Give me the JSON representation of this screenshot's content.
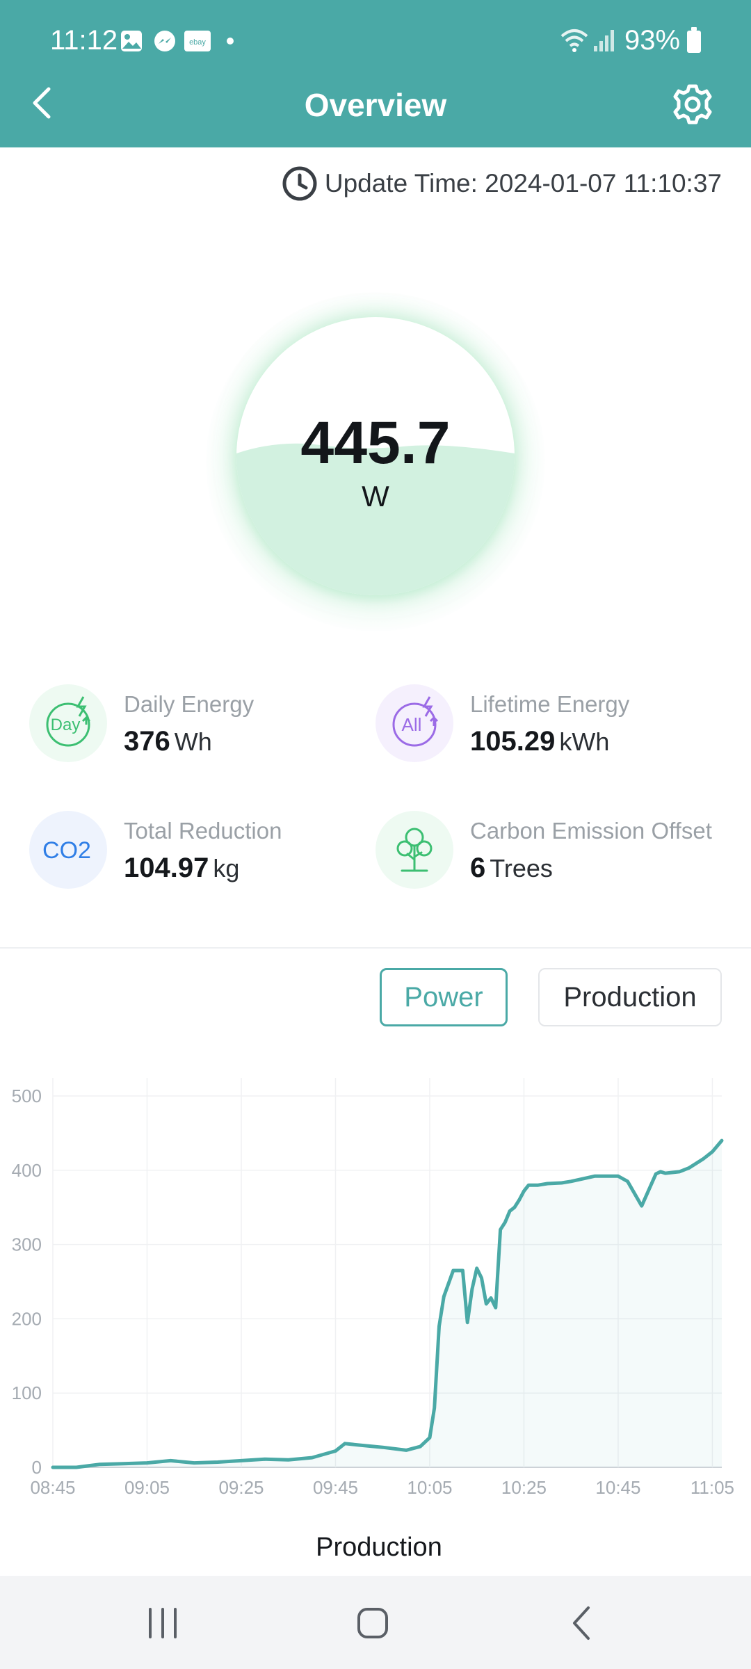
{
  "status_bar": {
    "time": "11:12",
    "battery": "93%",
    "notif_icons": [
      "gallery-icon",
      "messenger-icon",
      "ebay-icon"
    ],
    "ebay_text": "ebay"
  },
  "header": {
    "title": "Overview",
    "back_icon": "chevron-left-icon",
    "settings_icon": "gear-icon"
  },
  "update_time": "Update Time: 2024-01-07 11:10:37",
  "gauge": {
    "value": "445.7",
    "unit": "W"
  },
  "stats": {
    "daily": {
      "label": "Daily Energy",
      "value": "376",
      "unit": "Wh",
      "icon_text": "Day"
    },
    "lifetime": {
      "label": "Lifetime Energy",
      "value": "105.29",
      "unit": "kWh",
      "icon_text": "All"
    },
    "reduction": {
      "label": "Total Reduction",
      "value": "104.97",
      "unit": "kg",
      "icon_text": "CO2"
    },
    "offset": {
      "label": "Carbon Emission Offset",
      "value": "6",
      "unit": "Trees",
      "icon_text": ""
    }
  },
  "tabs": {
    "power": "Power",
    "production": "Production"
  },
  "chart_title": "Production",
  "colors": {
    "header": "#4aa9a6",
    "accent": "#4aa9a6",
    "gauge_fill": "#d2f1e0",
    "daily_green": "#3cbf72",
    "lifetime_purple": "#9b6be6",
    "co2_blue": "#2f7ee6",
    "tree_green": "#3cbf72"
  },
  "chart_data": {
    "type": "area",
    "title": "",
    "xlabel": "",
    "ylabel": "",
    "ylim": [
      0,
      500
    ],
    "yticks": [
      "0",
      "100",
      "200",
      "300",
      "400",
      "500"
    ],
    "xticks": [
      "08:45",
      "09:05",
      "09:25",
      "09:45",
      "10:05",
      "10:25",
      "10:45",
      "11:05"
    ],
    "grid": true,
    "x": [
      "08:45",
      "08:50",
      "08:55",
      "09:00",
      "09:05",
      "09:10",
      "09:15",
      "09:20",
      "09:25",
      "09:30",
      "09:35",
      "09:40",
      "09:45",
      "09:47",
      "09:50",
      "09:55",
      "10:00",
      "10:03",
      "10:05",
      "10:06",
      "10:07",
      "10:08",
      "10:10",
      "10:12",
      "10:13",
      "10:14",
      "10:15",
      "10:16",
      "10:17",
      "10:18",
      "10:19",
      "10:20",
      "10:21",
      "10:22",
      "10:23",
      "10:24",
      "10:25",
      "10:26",
      "10:28",
      "10:30",
      "10:33",
      "10:35",
      "10:40",
      "10:45",
      "10:47",
      "10:50",
      "10:53",
      "10:54",
      "10:55",
      "10:58",
      "11:00",
      "11:03",
      "11:05",
      "11:07"
    ],
    "series": [
      {
        "values": [
          0,
          0,
          4,
          5,
          6,
          9,
          6,
          7,
          9,
          11,
          10,
          13,
          22,
          32,
          30,
          27,
          23,
          28,
          40,
          80,
          190,
          230,
          265,
          265,
          195,
          240,
          268,
          255,
          220,
          228,
          215,
          320,
          330,
          345,
          350,
          360,
          372,
          380,
          380,
          382,
          383,
          385,
          392,
          392,
          385,
          352,
          395,
          398,
          396,
          398,
          403,
          415,
          425,
          440
        ]
      }
    ]
  }
}
